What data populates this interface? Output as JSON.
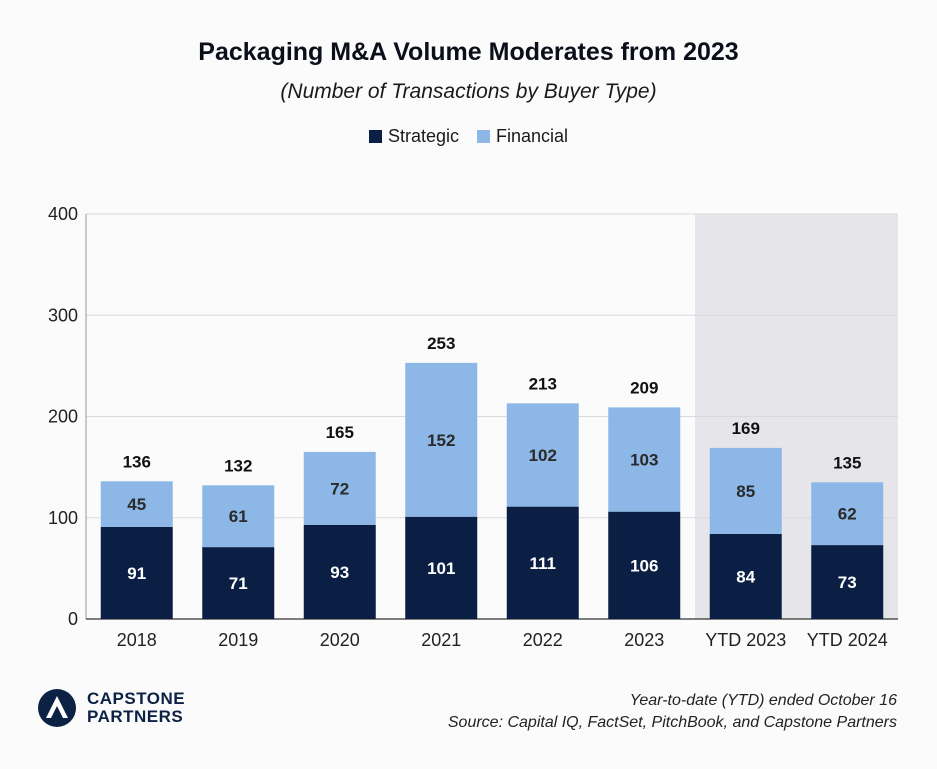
{
  "title": "Packaging M&A Volume Moderates from 2023",
  "subtitle": "(Number of Transactions by Buyer Type)",
  "colors": {
    "strategic": "#0b1f45",
    "financial": "#8cb7e6",
    "ytd_shade": "#e6e5ea",
    "grid": "#d9d9dd"
  },
  "chart_data": {
    "type": "bar",
    "stacked": true,
    "categories": [
      "2018",
      "2019",
      "2020",
      "2021",
      "2022",
      "2023",
      "YTD 2023",
      "YTD 2024"
    ],
    "series": [
      {
        "name": "Strategic",
        "values": [
          91,
          71,
          93,
          101,
          111,
          106,
          84,
          73
        ]
      },
      {
        "name": "Financial",
        "values": [
          45,
          61,
          72,
          152,
          102,
          103,
          85,
          62
        ]
      }
    ],
    "totals": [
      136,
      132,
      165,
      253,
      213,
      209,
      169,
      135
    ],
    "ylim": [
      0,
      400
    ],
    "yticks": [
      0,
      100,
      200,
      300,
      400
    ],
    "grid": true,
    "legend_position": "top-center",
    "shaded_categories": [
      "YTD 2023",
      "YTD 2024"
    ]
  },
  "logo": {
    "line1": "CAPSTONE",
    "line2": "PARTNERS"
  },
  "footer": {
    "note": "Year-to-date (YTD) ended October 16",
    "source": "Source: Capital IQ, FactSet, PitchBook, and Capstone Partners"
  }
}
